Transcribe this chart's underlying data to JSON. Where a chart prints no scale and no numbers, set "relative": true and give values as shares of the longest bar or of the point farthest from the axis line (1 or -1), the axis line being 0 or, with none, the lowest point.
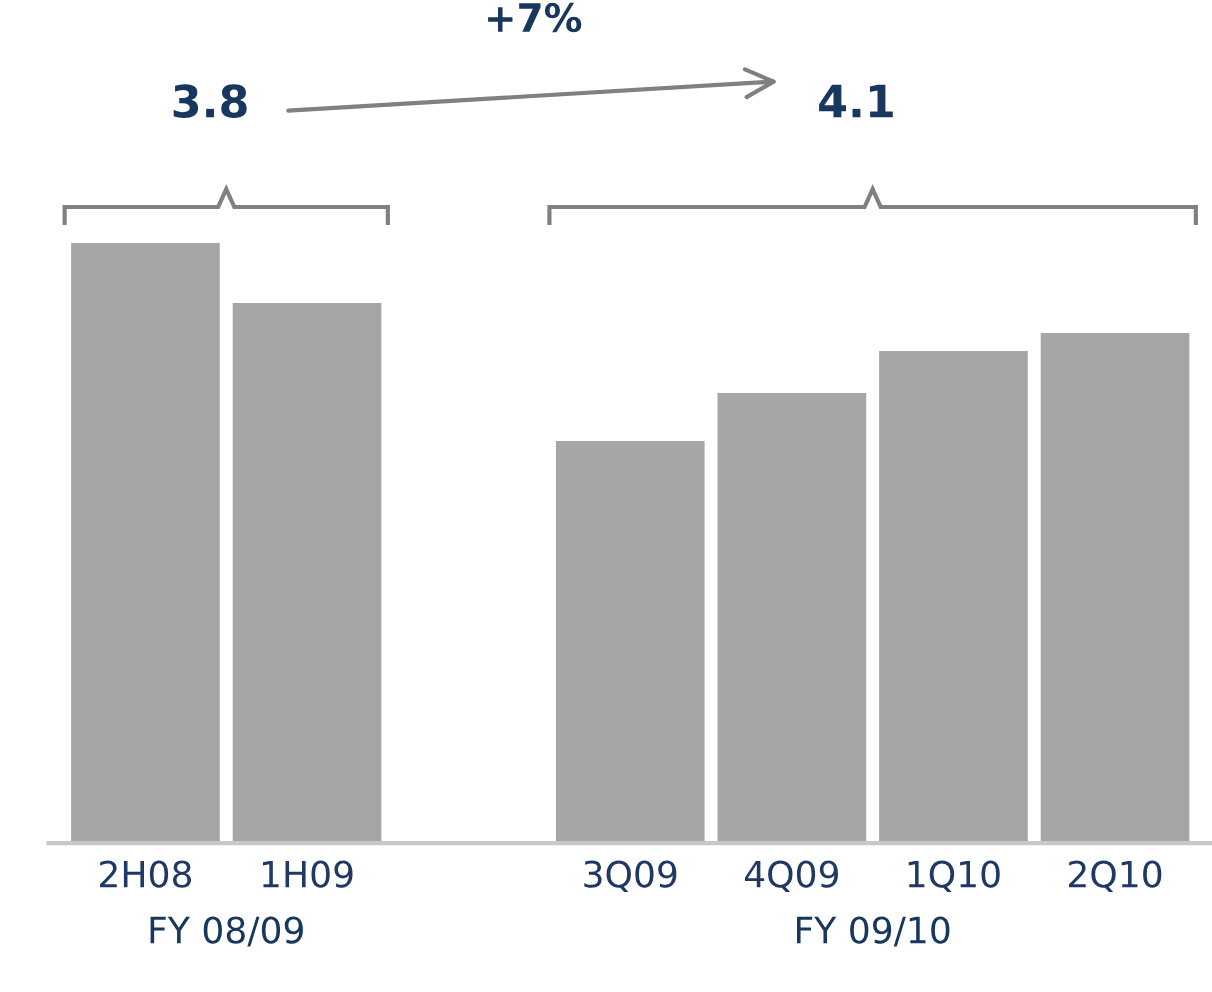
{
  "chart_data": {
    "type": "bar",
    "relative": true,
    "categories": [
      "2H08",
      "1H09",
      null,
      "3Q09",
      "4Q09",
      "1Q10",
      "2Q10"
    ],
    "values": [
      1,
      0.9,
      null,
      0.67,
      0.75,
      0.82,
      0.85
    ],
    "color": "#a6a6a6",
    "annotations": [
      "3.8",
      "+7%",
      "4.1",
      "FY 08/09",
      "FY 09/10"
    ],
    "grid": false,
    "legend": false
  }
}
